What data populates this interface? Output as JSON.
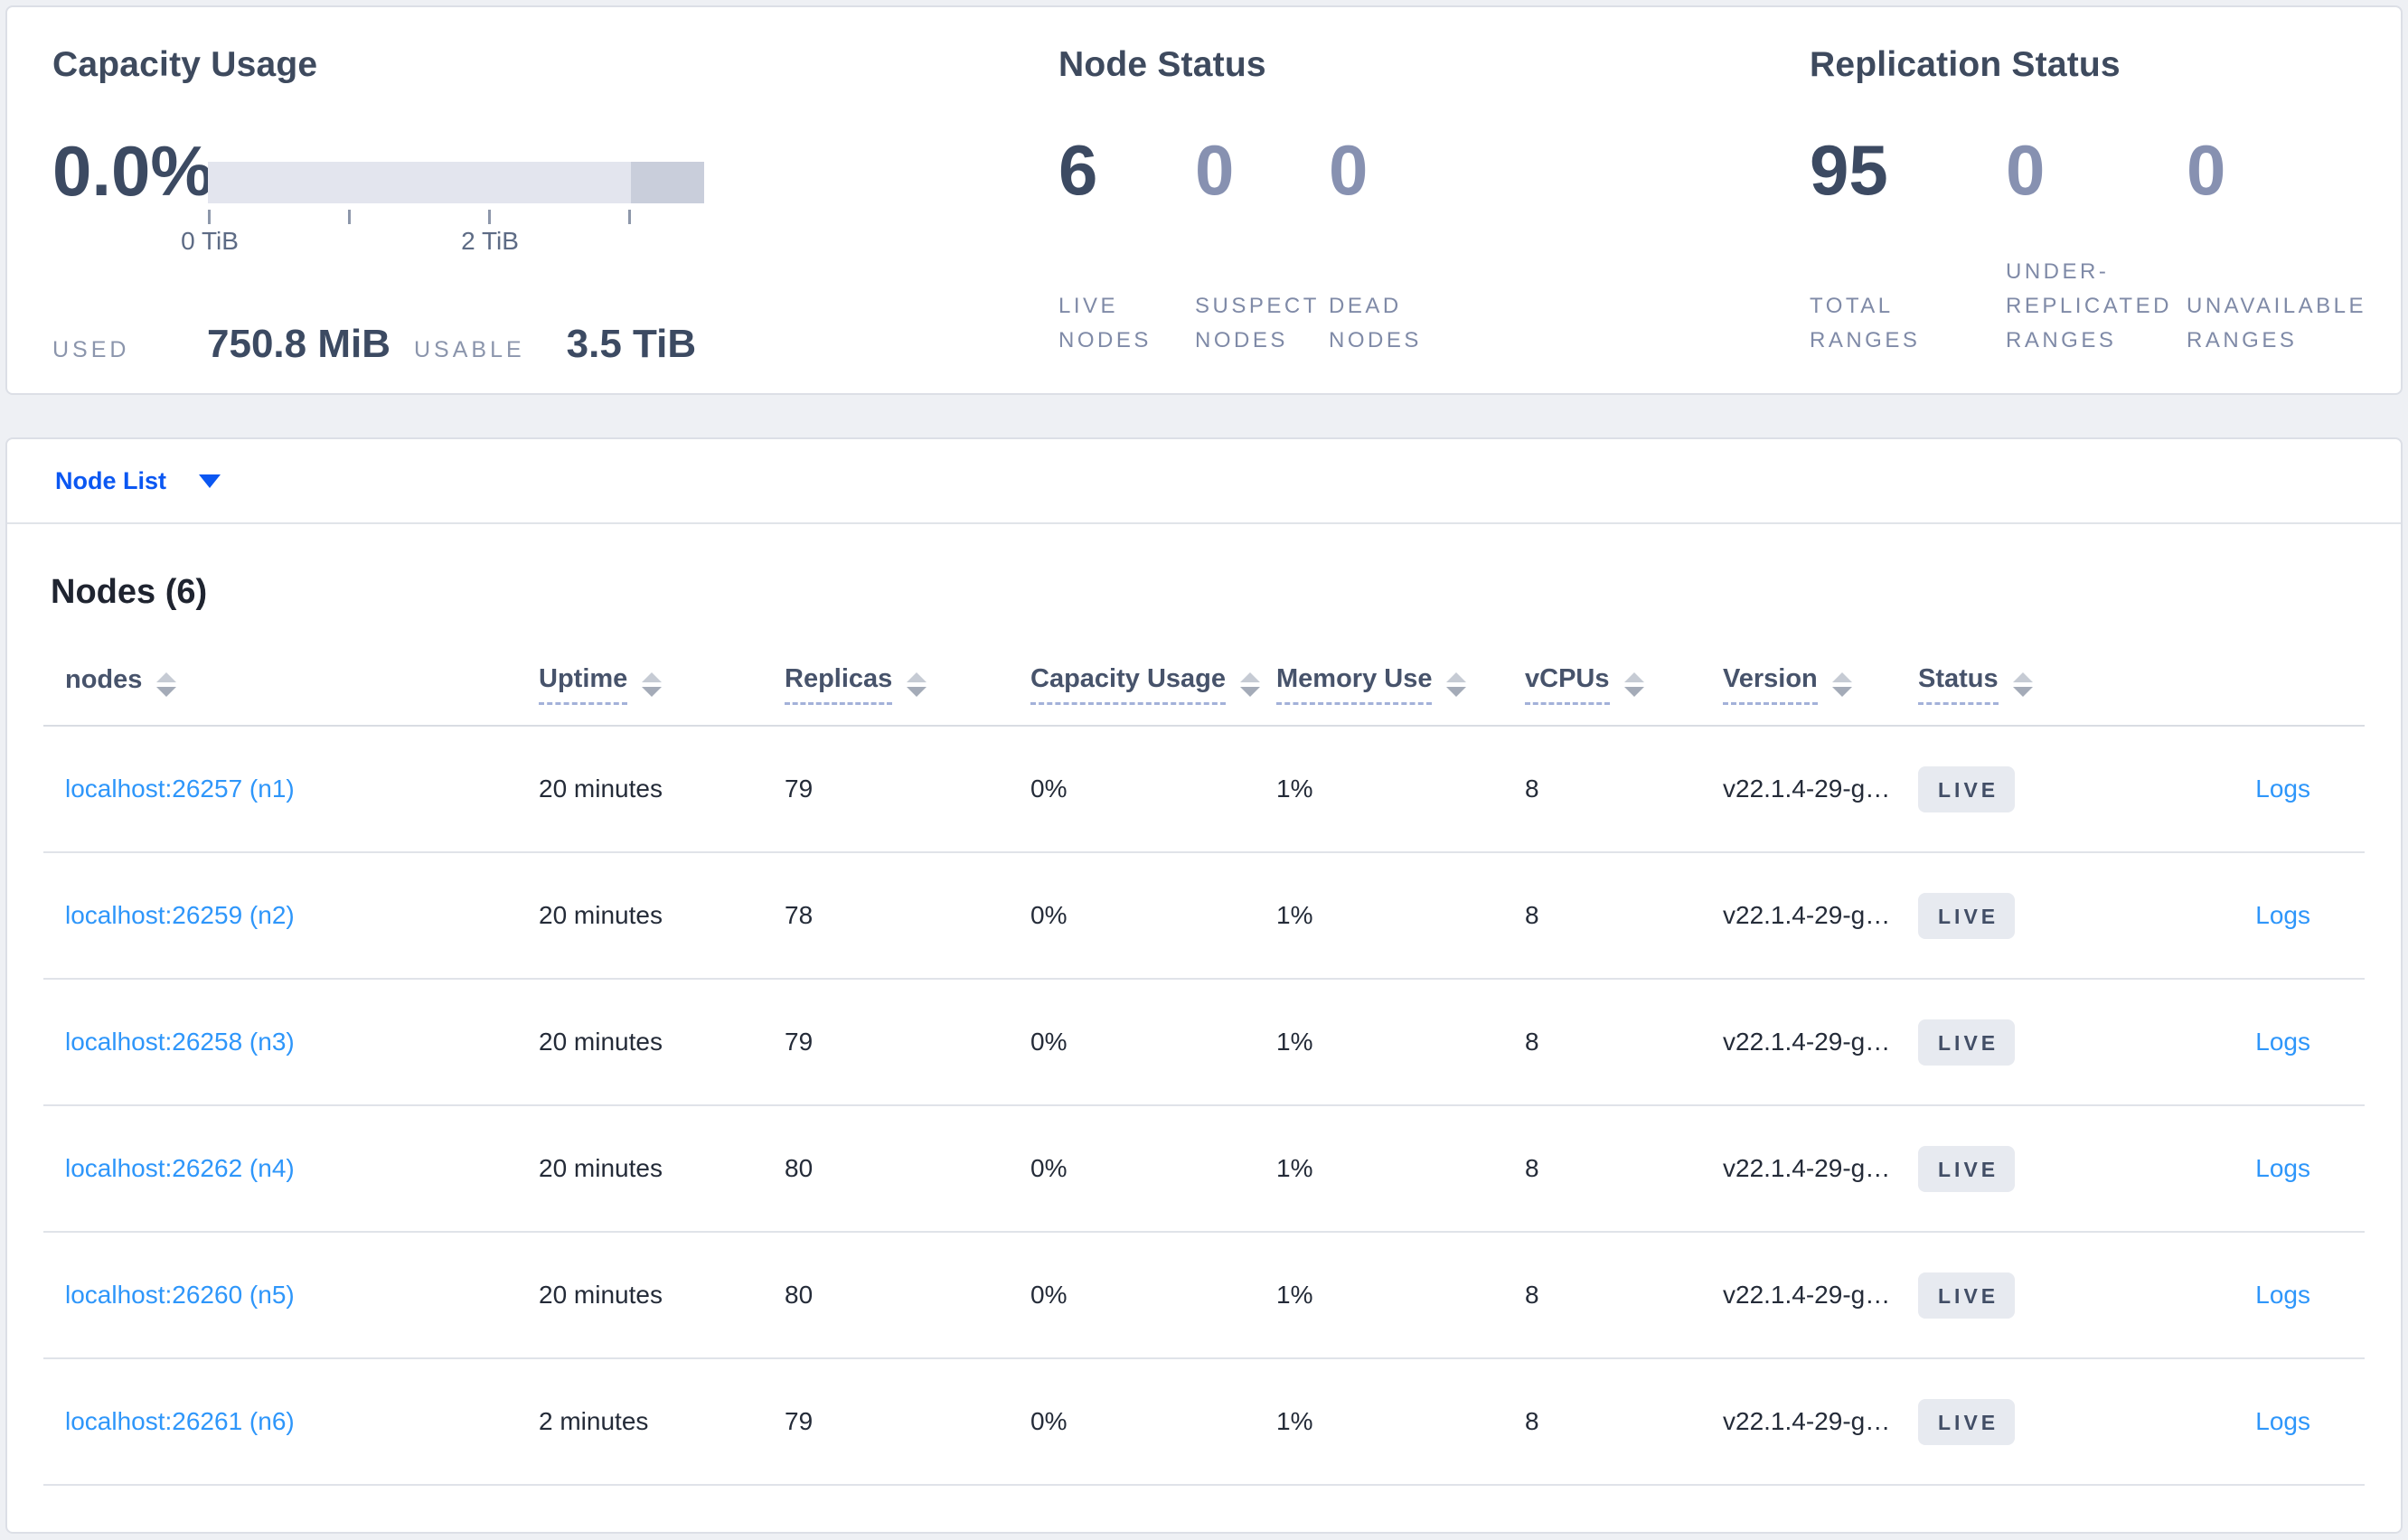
{
  "summary": {
    "capacity": {
      "title": "Capacity Usage",
      "percent": "0.0%",
      "tick_labels": [
        "0 TiB",
        "2 TiB"
      ],
      "used_label": "USED",
      "used_value": "750.8 MiB",
      "usable_label": "USABLE",
      "usable_value": "3.5 TiB"
    },
    "node_status": {
      "title": "Node Status",
      "stats": [
        {
          "value": "6",
          "label": "LIVE NODES"
        },
        {
          "value": "0",
          "label": "SUSPECT NODES"
        },
        {
          "value": "0",
          "label": "DEAD NODES"
        }
      ]
    },
    "replication": {
      "title": "Replication Status",
      "stats": [
        {
          "value": "95",
          "label": "TOTAL RANGES"
        },
        {
          "value": "0",
          "label": "UNDER-REPLICATED RANGES"
        },
        {
          "value": "0",
          "label": "UNAVAILABLE RANGES"
        }
      ]
    }
  },
  "node_list": {
    "dropdown_label": "Node List",
    "heading": "Nodes (6)",
    "columns": [
      {
        "label": "nodes",
        "tooltip": false
      },
      {
        "label": "Uptime",
        "tooltip": true
      },
      {
        "label": "Replicas",
        "tooltip": true
      },
      {
        "label": "Capacity Usage",
        "tooltip": true
      },
      {
        "label": "Memory Use",
        "tooltip": true
      },
      {
        "label": "vCPUs",
        "tooltip": true
      },
      {
        "label": "Version",
        "tooltip": true
      },
      {
        "label": "Status",
        "tooltip": true
      }
    ],
    "rows": [
      {
        "node": "localhost:26257 (n1)",
        "uptime": "20 minutes",
        "replicas": "79",
        "capacity": "0%",
        "memory": "1%",
        "vcpus": "8",
        "version": "v22.1.4-29-g…",
        "status": "LIVE",
        "logs": "Logs"
      },
      {
        "node": "localhost:26259 (n2)",
        "uptime": "20 minutes",
        "replicas": "78",
        "capacity": "0%",
        "memory": "1%",
        "vcpus": "8",
        "version": "v22.1.4-29-g…",
        "status": "LIVE",
        "logs": "Logs"
      },
      {
        "node": "localhost:26258 (n3)",
        "uptime": "20 minutes",
        "replicas": "79",
        "capacity": "0%",
        "memory": "1%",
        "vcpus": "8",
        "version": "v22.1.4-29-g…",
        "status": "LIVE",
        "logs": "Logs"
      },
      {
        "node": "localhost:26262 (n4)",
        "uptime": "20 minutes",
        "replicas": "80",
        "capacity": "0%",
        "memory": "1%",
        "vcpus": "8",
        "version": "v22.1.4-29-g…",
        "status": "LIVE",
        "logs": "Logs"
      },
      {
        "node": "localhost:26260 (n5)",
        "uptime": "20 minutes",
        "replicas": "80",
        "capacity": "0%",
        "memory": "1%",
        "vcpus": "8",
        "version": "v22.1.4-29-g…",
        "status": "LIVE",
        "logs": "Logs"
      },
      {
        "node": "localhost:26261 (n6)",
        "uptime": "2 minutes",
        "replicas": "79",
        "capacity": "0%",
        "memory": "1%",
        "vcpus": "8",
        "version": "v22.1.4-29-g…",
        "status": "LIVE",
        "logs": "Logs"
      }
    ]
  },
  "colors": {
    "link_blue": "#2e96fa",
    "dropdown_blue": "#0b57f2",
    "badge_bg": "#e7eaf0",
    "bar_light": "#e3e5ee",
    "bar_dark": "#c9cedb"
  }
}
